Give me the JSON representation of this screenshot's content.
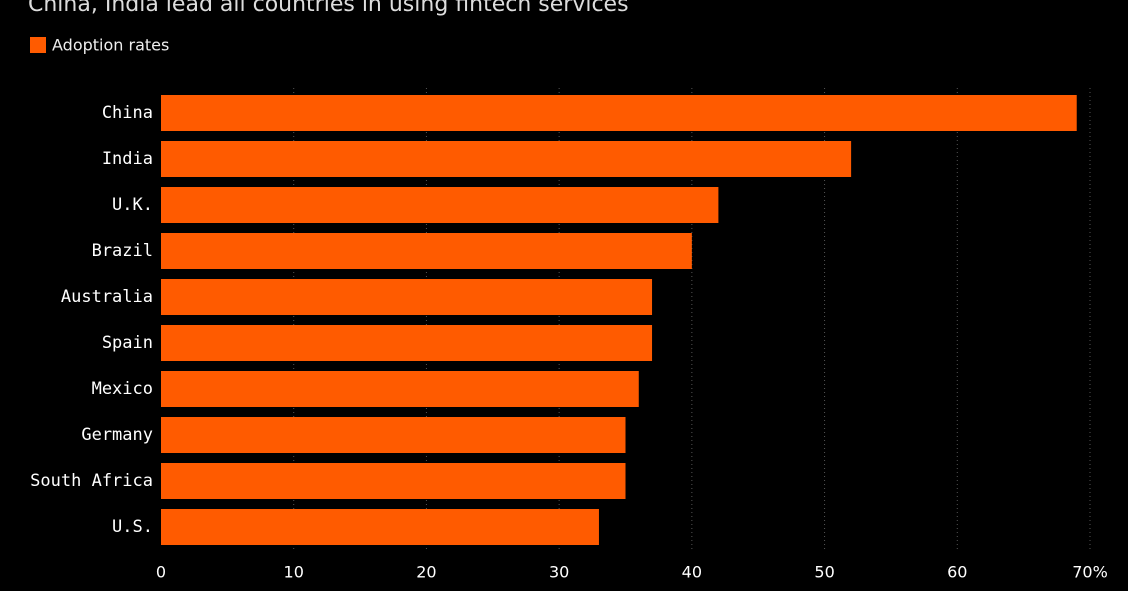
{
  "chart_data": {
    "type": "hbar",
    "title": "China, India lead all countries in using fintech services",
    "categories": [
      "China",
      "India",
      "U.K.",
      "Brazil",
      "Australia",
      "Spain",
      "Mexico",
      "Germany",
      "South Africa",
      "U.S."
    ],
    "series": [
      {
        "name": "Adoption rates",
        "color": "#ff5b00",
        "values": [
          69,
          52,
          42,
          40,
          37,
          37,
          36,
          35,
          35,
          33
        ]
      }
    ],
    "xlim": [
      0,
      70
    ],
    "xticks": [
      0,
      10,
      20,
      30,
      40,
      50,
      60,
      {
        "value": 70,
        "label": "70%"
      }
    ],
    "grid": true
  }
}
